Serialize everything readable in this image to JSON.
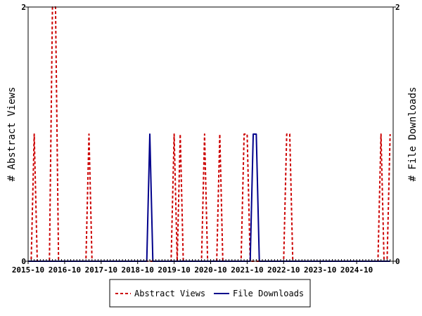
{
  "chart_data": {
    "type": "line",
    "title": "",
    "x_tick_labels": [
      "2015-10",
      "2016-10",
      "2017-10",
      "2018-10",
      "2019-10",
      "2020-10",
      "2021-10",
      "2022-10",
      "2023-10",
      "2024-10"
    ],
    "months": 120,
    "left_axis": {
      "label": "# Abstract Views",
      "ylim": [
        0,
        2
      ],
      "tick_labels": [
        "0",
        "2"
      ]
    },
    "right_axis": {
      "label": "# File Downloads",
      "ylim": [
        0,
        2
      ],
      "tick_labels": [
        "0",
        "2"
      ]
    },
    "legend_placement": "bottom-center",
    "series": [
      {
        "name": "Abstract Views",
        "color": "#cc0000",
        "dash": true,
        "values": [
          0,
          0,
          1,
          0,
          0,
          0,
          0,
          0,
          2,
          2,
          0,
          0,
          0,
          0,
          0,
          0,
          0,
          0,
          0,
          0,
          1,
          0,
          0,
          0,
          0,
          0,
          0,
          0,
          0,
          0,
          0,
          0,
          0,
          0,
          0,
          0,
          0,
          0,
          0,
          0,
          0,
          0,
          0,
          0,
          0,
          0,
          0,
          0,
          1,
          0,
          1,
          0,
          0,
          0,
          0,
          0,
          0,
          0,
          1,
          0,
          0,
          0,
          0,
          1,
          0,
          0,
          0,
          0,
          0,
          0,
          0,
          1,
          1,
          0,
          0,
          0,
          0,
          0,
          0,
          0,
          0,
          0,
          0,
          0,
          0,
          1,
          1,
          0,
          0,
          0,
          0,
          0,
          0,
          0,
          0,
          0,
          0,
          0,
          0,
          0,
          0,
          0,
          0,
          0,
          0,
          0,
          0,
          0,
          0,
          0,
          0,
          0,
          0,
          0,
          0,
          0,
          1,
          0,
          0,
          1
        ]
      },
      {
        "name": "File Downloads",
        "color": "#00008b",
        "dash": false,
        "values": [
          0,
          0,
          0,
          0,
          0,
          0,
          0,
          0,
          0,
          0,
          0,
          0,
          0,
          0,
          0,
          0,
          0,
          0,
          0,
          0,
          0,
          0,
          0,
          0,
          0,
          0,
          0,
          0,
          0,
          0,
          0,
          0,
          0,
          0,
          0,
          0,
          0,
          0,
          0,
          0,
          1,
          0,
          0,
          0,
          0,
          0,
          0,
          0,
          0,
          0,
          0,
          0,
          0,
          0,
          0,
          0,
          0,
          0,
          0,
          0,
          0,
          0,
          0,
          0,
          0,
          0,
          0,
          0,
          0,
          0,
          0,
          0,
          0,
          0,
          1,
          1,
          0,
          0,
          0,
          0,
          0,
          0,
          0,
          0,
          0,
          0,
          0,
          0,
          0,
          0,
          0,
          0,
          0,
          0,
          0,
          0,
          0,
          0,
          0,
          0,
          0,
          0,
          0,
          0,
          0,
          0,
          0,
          0,
          0,
          0,
          0,
          0,
          0,
          0,
          0,
          0,
          0,
          0,
          0,
          0
        ]
      }
    ]
  }
}
